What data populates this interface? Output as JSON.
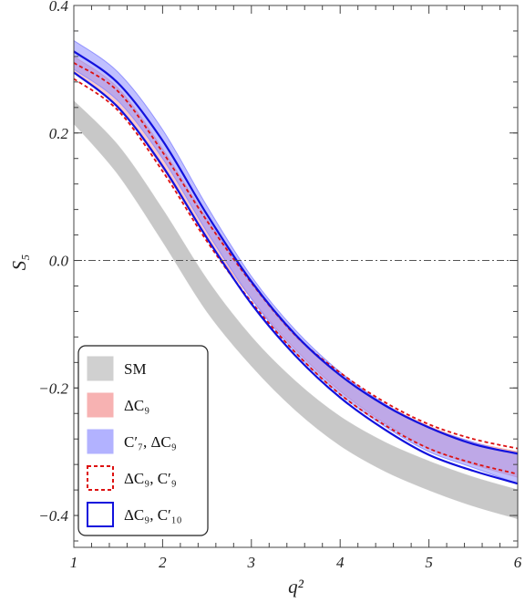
{
  "chart_data": {
    "type": "area",
    "title": "",
    "xlabel": "q²",
    "ylabel": "S₅",
    "xlim": [
      1,
      6
    ],
    "ylim": [
      -0.45,
      0.4
    ],
    "x_ticks": [
      1,
      2,
      3,
      4,
      5,
      6
    ],
    "x_tick_labels": [
      "1",
      "2",
      "3",
      "4",
      "5",
      "6"
    ],
    "y_ticks": [
      0.4,
      0.2,
      0.0,
      -0.2,
      -0.4
    ],
    "y_tick_labels": [
      "0.4",
      "0.2",
      "0.0",
      "−0.2",
      "−0.4"
    ],
    "reference_line": {
      "y": 0.0,
      "style": "dash-dot",
      "color": "#555555"
    },
    "grid": false,
    "legend_position": "bottom-left",
    "x": [
      1.0,
      1.5,
      2.0,
      2.5,
      3.0,
      3.5,
      4.0,
      4.5,
      5.0,
      5.5,
      6.0
    ],
    "series": [
      {
        "name": "SM",
        "kind": "band",
        "color": "#c8c8c8",
        "lower": [
          0.215,
          0.135,
          0.03,
          -0.08,
          -0.165,
          -0.235,
          -0.29,
          -0.33,
          -0.36,
          -0.385,
          -0.405
        ],
        "upper": [
          0.25,
          0.18,
          0.08,
          -0.03,
          -0.12,
          -0.19,
          -0.245,
          -0.285,
          -0.315,
          -0.34,
          -0.36
        ]
      },
      {
        "name": "ΔC₉",
        "kind": "band",
        "color": "#f5a0a0",
        "lower": [
          0.295,
          0.24,
          0.145,
          0.035,
          -0.06,
          -0.14,
          -0.205,
          -0.255,
          -0.295,
          -0.32,
          -0.34
        ],
        "upper": [
          0.32,
          0.27,
          0.175,
          0.065,
          -0.035,
          -0.12,
          -0.18,
          -0.225,
          -0.26,
          -0.285,
          -0.3
        ]
      },
      {
        "name": "C′₇, ΔC₉",
        "kind": "band",
        "color": "#8c8cff",
        "lower": [
          0.3,
          0.25,
          0.16,
          0.045,
          -0.06,
          -0.145,
          -0.21,
          -0.26,
          -0.3,
          -0.325,
          -0.35
        ],
        "upper": [
          0.345,
          0.295,
          0.205,
          0.085,
          -0.025,
          -0.11,
          -0.175,
          -0.225,
          -0.262,
          -0.285,
          -0.305
        ]
      },
      {
        "name": "ΔC₉, C′₉",
        "kind": "band-outline",
        "color": "#dd1111",
        "dashed": true,
        "lower": [
          0.285,
          0.235,
          0.14,
          0.03,
          -0.065,
          -0.145,
          -0.21,
          -0.258,
          -0.295,
          -0.318,
          -0.335
        ],
        "upper": [
          0.31,
          0.265,
          0.17,
          0.062,
          -0.035,
          -0.118,
          -0.176,
          -0.222,
          -0.257,
          -0.28,
          -0.295
        ]
      },
      {
        "name": "ΔC₉, C′₁₀",
        "kind": "band-outline",
        "color": "#1111dd",
        "dashed": false,
        "lower": [
          0.295,
          0.24,
          0.148,
          0.035,
          -0.068,
          -0.15,
          -0.215,
          -0.265,
          -0.305,
          -0.33,
          -0.35
        ],
        "upper": [
          0.328,
          0.278,
          0.188,
          0.072,
          -0.033,
          -0.117,
          -0.18,
          -0.227,
          -0.262,
          -0.288,
          -0.303
        ]
      }
    ]
  },
  "legend": {
    "items": [
      {
        "label": "SM",
        "swatch": "fill",
        "fill": "#d0d0d0",
        "stroke": "#d0d0d0"
      },
      {
        "label": "ΔC₉",
        "swatch": "fill",
        "fill": "#f7b2b2",
        "stroke": "#f7b2b2"
      },
      {
        "label": "C′₇, ΔC₉",
        "swatch": "fill",
        "fill": "#b2b2ff",
        "stroke": "#b2b2ff"
      },
      {
        "label": "ΔC₉, C′₉",
        "swatch": "dashed",
        "fill": "none",
        "stroke": "#dd1111"
      },
      {
        "label": "ΔC₉, C′₁₀",
        "swatch": "solid",
        "fill": "none",
        "stroke": "#1111dd"
      }
    ]
  }
}
